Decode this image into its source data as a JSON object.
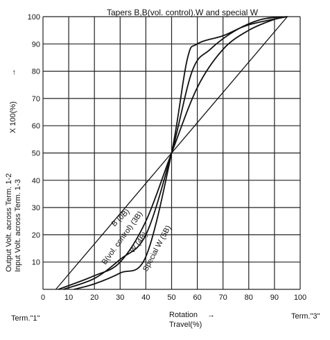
{
  "chart_data": {
    "type": "line",
    "title": "Tapers B,B(vol. control).W and special W",
    "ylabel_line1": "Output Volt. across Term. 1-2",
    "ylabel_line2": "Input Volt. across Term. 1-3",
    "ylabel_suffix": "X 100(%)",
    "ylabel_arrow": "→",
    "xlabel_line1": "Rotation",
    "xlabel_line2": "Travel(%)",
    "x_arrow": "→",
    "term_left": "Term.\"1\"",
    "term_right": "Term.\"3\"",
    "xlim": [
      0,
      100
    ],
    "ylim": [
      0,
      100
    ],
    "xticks": [
      "0",
      "10",
      "20",
      "30",
      "40",
      "50",
      "60",
      "70",
      "80",
      "90",
      "100"
    ],
    "yticks": [
      "10",
      "20",
      "30",
      "40",
      "50",
      "60",
      "70",
      "80",
      "90",
      "100"
    ],
    "grid": true,
    "series": [
      {
        "name": "B (0B)",
        "color": "#111111",
        "x": [
          5,
          50,
          95
        ],
        "y": [
          0,
          50,
          100
        ]
      },
      {
        "name": "B(vol. control) (3B)",
        "color": "#111111",
        "x": [
          6,
          20,
          30,
          40,
          50,
          60,
          70,
          80,
          90,
          95
        ],
        "y": [
          0,
          5,
          10,
          25,
          50,
          74,
          88,
          95,
          99,
          100
        ]
      },
      {
        "name": "W (4B)",
        "color": "#111111",
        "x": [
          8,
          20,
          30,
          40,
          50,
          58,
          65,
          75,
          85,
          95
        ],
        "y": [
          0,
          4,
          11,
          20,
          50,
          80,
          88,
          95,
          99,
          100
        ]
      },
      {
        "name": "Special W (5B)",
        "color": "#111111",
        "x": [
          12,
          20,
          30,
          40,
          50,
          56,
          60,
          70,
          80,
          95
        ],
        "y": [
          0,
          2,
          6,
          12,
          50,
          84,
          90,
          93,
          97,
          100
        ]
      }
    ]
  }
}
